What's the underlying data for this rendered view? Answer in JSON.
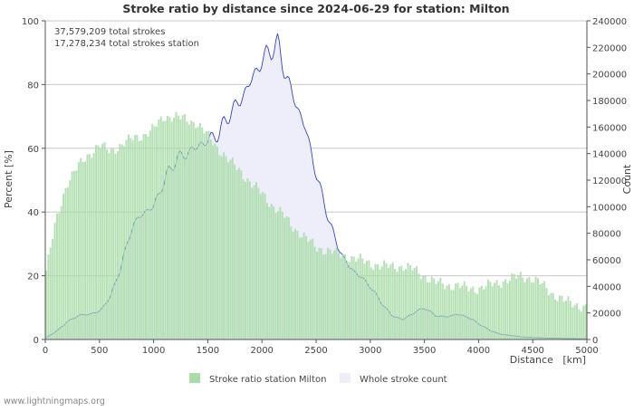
{
  "chart_data": {
    "type": "area",
    "title": "Stroke ratio by distance since 2024-06-29 for station: Milton",
    "annotations": [
      "37,579,209 total strokes",
      "17,278,234 total strokes station"
    ],
    "xlabel": "Distance   [km]",
    "ylabel_left": "Percent   [%]",
    "ylabel_right": "Count",
    "xlim": [
      0,
      5000
    ],
    "ylim_left": [
      0,
      100
    ],
    "ylim_right": [
      0,
      240000
    ],
    "x_ticks": [
      "0",
      "500",
      "1000",
      "1500",
      "2000",
      "2500",
      "3000",
      "3500",
      "4000",
      "4500",
      "5000"
    ],
    "y_ticks_left": [
      "0",
      "20",
      "40",
      "60",
      "80",
      "100"
    ],
    "y_ticks_right": [
      "0",
      "20000",
      "40000",
      "60000",
      "80000",
      "100000",
      "120000",
      "140000",
      "160000",
      "180000",
      "200000",
      "220000",
      "240000"
    ],
    "legend": [
      "Stroke ratio station Milton",
      "Whole stroke count"
    ],
    "colors": {
      "ratio_fill": "#a8dca8",
      "ratio_edge": "#8cc98c",
      "count_fill": "#eeeefa",
      "count_line": "#3344cc",
      "grid": "#c8c8c8"
    },
    "series": [
      {
        "name": "Stroke ratio station Milton",
        "axis": "left",
        "x": [
          0,
          100,
          200,
          300,
          400,
          500,
          600,
          700,
          800,
          900,
          1000,
          1100,
          1200,
          1300,
          1400,
          1500,
          1600,
          1700,
          1800,
          1900,
          2000,
          2100,
          2200,
          2300,
          2400,
          2500,
          2600,
          2700,
          2800,
          2900,
          3000,
          3100,
          3200,
          3300,
          3400,
          3500,
          3600,
          3700,
          3800,
          3900,
          4000,
          4100,
          4200,
          4300,
          4400,
          4500,
          4600,
          4700,
          4800,
          4900,
          5000
        ],
        "values": [
          20,
          37,
          49,
          54,
          58,
          61,
          59,
          61,
          63,
          64,
          66,
          70,
          70,
          69,
          68,
          64,
          60,
          56,
          53,
          49,
          46,
          42,
          39,
          35,
          32,
          29,
          28,
          27,
          26,
          25,
          24,
          23,
          23,
          23,
          22,
          20,
          18,
          17,
          17,
          16,
          16,
          17,
          18,
          19,
          20,
          19,
          17,
          14,
          12,
          11,
          10
        ]
      },
      {
        "name": "Whole stroke count",
        "axis": "right",
        "x": [
          0,
          100,
          200,
          300,
          400,
          500,
          600,
          700,
          800,
          900,
          1000,
          1100,
          1200,
          1300,
          1400,
          1500,
          1600,
          1700,
          1800,
          1900,
          2000,
          2100,
          2150,
          2200,
          2300,
          2400,
          2500,
          2600,
          2700,
          2800,
          2900,
          3000,
          3100,
          3200,
          3300,
          3400,
          3500,
          3600,
          3700,
          3800,
          3900,
          4000,
          4100,
          4200,
          4300,
          4400,
          4500,
          4600,
          4700,
          4800,
          4900,
          5000
        ],
        "values": [
          1000,
          6000,
          13000,
          18000,
          19000,
          21000,
          32000,
          55000,
          85000,
          95000,
          100000,
          120000,
          135000,
          140000,
          145000,
          150000,
          155000,
          170000,
          180000,
          195000,
          210000,
          220000,
          222000,
          205000,
          180000,
          160000,
          125000,
          95000,
          70000,
          55000,
          48000,
          40000,
          28000,
          18000,
          15000,
          20000,
          24000,
          18000,
          17000,
          19000,
          17000,
          12000,
          7000,
          4000,
          3000,
          2000,
          1500,
          1200,
          1000,
          800,
          600,
          500
        ]
      }
    ]
  },
  "footer": {
    "site": "www.lightningmaps.org"
  }
}
